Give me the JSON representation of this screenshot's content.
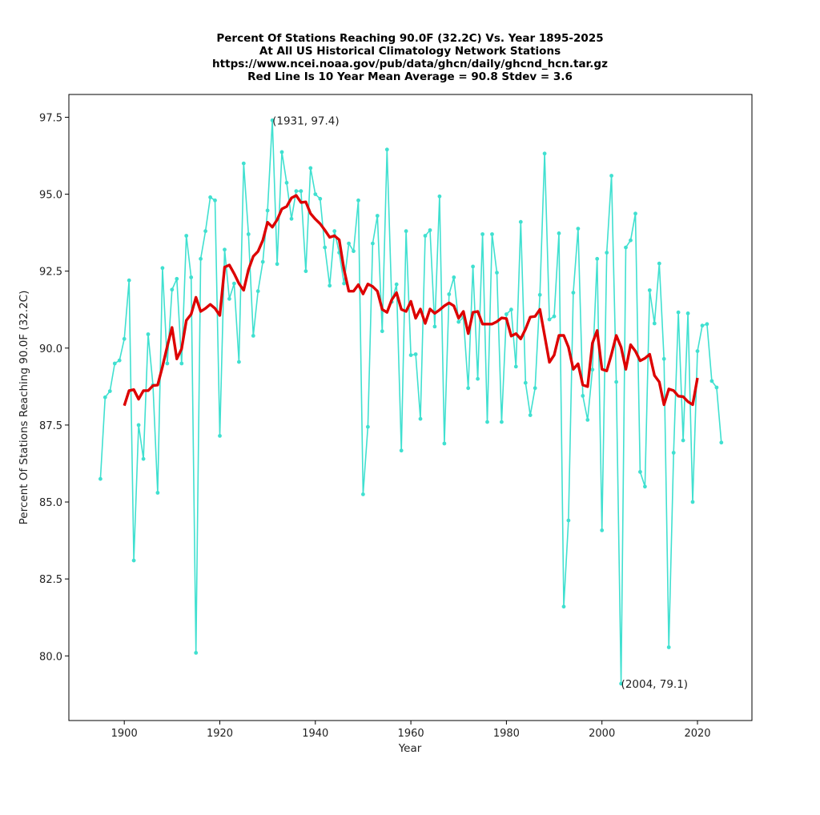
{
  "chart_data": {
    "type": "line",
    "title_lines": [
      "Percent Of Stations Reaching 90.0F (32.2C) Vs. Year 1895-2025",
      "At All US Historical Climatology Network Stations",
      "https://www.ncei.noaa.gov/pub/data/ghcn/daily/ghcnd_hcn.tar.gz",
      "Red Line Is 10 Year Mean  Average = 90.8 Stdev = 3.6"
    ],
    "xlabel": "Year",
    "ylabel": "Percent Of Stations Reaching 90.0F (32.2C)",
    "xlim": [
      1888.4,
      2031.4
    ],
    "ylim": [
      77.9,
      98.24
    ],
    "xticks": [
      1900,
      1920,
      1940,
      1960,
      1980,
      2000,
      2020
    ],
    "xtick_labels": [
      "1900",
      "1920",
      "1940",
      "1960",
      "1980",
      "2000",
      "2020"
    ],
    "yticks": [
      80.0,
      82.5,
      85.0,
      87.5,
      90.0,
      92.5,
      95.0,
      97.5
    ],
    "ytick_labels": [
      "80.0",
      "82.5",
      "85.0",
      "87.5",
      "90.0",
      "92.5",
      "95.0",
      "97.5"
    ],
    "grid": false,
    "series": [
      {
        "name": "Annual percent",
        "color": "#40e0d0",
        "marker": "dot",
        "x_start": 1895,
        "values": [
          85.75,
          88.4,
          88.6,
          89.5,
          89.6,
          90.3,
          92.2,
          83.1,
          87.5,
          86.4,
          90.45,
          88.8,
          85.3,
          92.6,
          89.5,
          91.9,
          92.25,
          89.5,
          93.65,
          92.3,
          80.1,
          92.9,
          93.8,
          94.9,
          94.8,
          87.15,
          93.2,
          91.6,
          92.1,
          89.55,
          96.0,
          93.7,
          90.4,
          91.85,
          92.8,
          94.47,
          97.4,
          92.73,
          96.37,
          95.37,
          94.2,
          95.1,
          95.1,
          92.5,
          95.85,
          95.0,
          94.85,
          93.27,
          92.03,
          93.8,
          93.1,
          92.1,
          93.4,
          93.15,
          94.8,
          85.25,
          87.44,
          93.4,
          94.3,
          90.55,
          96.45,
          91.5,
          92.07,
          86.67,
          93.8,
          89.77,
          89.8,
          87.7,
          93.65,
          93.83,
          90.7,
          94.93,
          86.9,
          91.75,
          92.3,
          90.85,
          91.0,
          88.7,
          92.65,
          89.0,
          93.7,
          87.6,
          93.7,
          92.45,
          87.6,
          91.1,
          91.25,
          89.4,
          94.1,
          88.87,
          87.82,
          88.7,
          91.73,
          96.32,
          90.93,
          91.03,
          93.73,
          81.6,
          84.4,
          91.8,
          93.88,
          88.45,
          87.67,
          89.3,
          92.9,
          84.08,
          93.1,
          95.6,
          88.9,
          79.1,
          93.27,
          93.5,
          94.37,
          85.98,
          85.5,
          91.88,
          90.8,
          92.75,
          89.65,
          80.28,
          86.6,
          91.16,
          87.0,
          91.13,
          85.0,
          89.9,
          90.73,
          90.78,
          88.93,
          88.72,
          86.93
        ]
      },
      {
        "name": "10 Year Mean",
        "color": "#dd0000",
        "marker": "none",
        "x_start": 1900,
        "values": [
          88.13,
          88.62,
          88.65,
          88.34,
          88.62,
          88.62,
          88.78,
          88.8,
          89.4,
          90.06,
          90.67,
          89.65,
          89.98,
          90.9,
          91.1,
          91.65,
          91.19,
          91.29,
          91.42,
          91.29,
          91.06,
          92.63,
          92.7,
          92.42,
          92.1,
          91.88,
          92.55,
          92.98,
          93.14,
          93.5,
          94.09,
          93.93,
          94.17,
          94.52,
          94.6,
          94.88,
          94.96,
          94.73,
          94.75,
          94.37,
          94.19,
          94.04,
          93.83,
          93.6,
          93.65,
          93.52,
          92.55,
          91.85,
          91.85,
          92.06,
          91.76,
          92.08,
          92.0,
          91.85,
          91.26,
          91.16,
          91.57,
          91.8,
          91.26,
          91.19,
          91.52,
          90.97,
          91.27,
          90.8,
          91.27,
          91.13,
          91.24,
          91.37,
          91.47,
          91.37,
          90.97,
          91.19,
          90.47,
          91.16,
          91.19,
          90.78,
          90.78,
          90.78,
          90.86,
          90.98,
          90.96,
          90.39,
          90.47,
          90.3,
          90.62,
          91.01,
          91.03,
          91.26,
          90.41,
          89.54,
          89.77,
          90.41,
          90.41,
          90.03,
          89.31,
          89.49,
          88.8,
          88.75,
          90.16,
          90.57,
          89.31,
          89.26,
          89.8,
          90.41,
          90.03,
          89.31,
          90.11,
          89.9,
          89.59,
          89.67,
          89.8,
          89.11,
          88.9,
          88.16,
          88.67,
          88.62,
          88.44,
          88.42,
          88.26,
          88.16,
          89.03
        ]
      }
    ],
    "annotations": [
      {
        "text": "(1931, 97.4)",
        "x": 1931,
        "y": 97.4
      },
      {
        "text": "(2004, 79.1)",
        "x": 2004,
        "y": 79.1
      }
    ],
    "legend": "none"
  }
}
